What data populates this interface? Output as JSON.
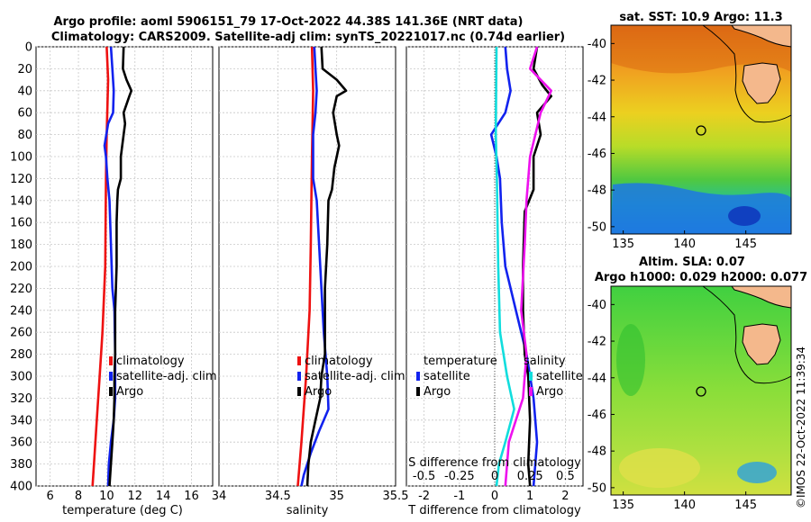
{
  "titles": {
    "line1": "Argo profile: aoml 5906151_79 17-Oct-2022 44.38S 141.36E (NRT data)",
    "line2": "Climatology: CARS2009. Satellite-adj clim: synTS_20221017.nc (0.74d earlier)"
  },
  "watermark": "©IMOS 22-Oct-2022 11:39:34",
  "colors": {
    "climatology": "#ee1111",
    "satellite": "#1122ee",
    "argo": "#000000",
    "salinity_diff": "#ee11ee",
    "temperature_diff": "#11dddd"
  },
  "chart_data": [
    {
      "type": "line",
      "panel": "temperature",
      "xlabel": "temperature (deg C)",
      "ylabel": "",
      "xlim": [
        5,
        17.5
      ],
      "ylim": [
        400,
        0
      ],
      "x_ticks": [
        "6",
        "8",
        "10",
        "12",
        "14",
        "16"
      ],
      "x_tick_values": [
        6,
        8,
        10,
        12,
        14,
        16
      ],
      "y_ticks": [
        "0",
        "20",
        "40",
        "60",
        "80",
        "100",
        "120",
        "140",
        "160",
        "180",
        "200",
        "220",
        "240",
        "260",
        "280",
        "300",
        "320",
        "340",
        "360",
        "380",
        "400"
      ],
      "y_tick_values": [
        0,
        20,
        40,
        60,
        80,
        100,
        120,
        140,
        160,
        180,
        200,
        220,
        240,
        260,
        280,
        300,
        320,
        340,
        360,
        380,
        400
      ],
      "grid": true,
      "legend": [
        "climatology",
        "satellite-adj. clim",
        "Argo"
      ],
      "series": [
        {
          "name": "climatology",
          "color": "#ee1111",
          "points": [
            [
              10.0,
              0
            ],
            [
              10.1,
              30
            ],
            [
              10.0,
              80
            ],
            [
              9.95,
              120
            ],
            [
              9.9,
              200
            ],
            [
              9.7,
              260
            ],
            [
              9.5,
              300
            ],
            [
              9.3,
              340
            ],
            [
              9.1,
              380
            ],
            [
              9.0,
              400
            ]
          ]
        },
        {
          "name": "satellite-adj. clim",
          "color": "#1122ee",
          "points": [
            [
              10.3,
              0
            ],
            [
              10.4,
              20
            ],
            [
              10.5,
              40
            ],
            [
              10.45,
              60
            ],
            [
              10.1,
              70
            ],
            [
              9.85,
              90
            ],
            [
              9.95,
              100
            ],
            [
              10.05,
              120
            ],
            [
              10.2,
              140
            ],
            [
              10.3,
              180
            ],
            [
              10.4,
              220
            ],
            [
              10.55,
              240
            ],
            [
              10.6,
              280
            ],
            [
              10.6,
              320
            ],
            [
              10.5,
              340
            ],
            [
              10.3,
              360
            ],
            [
              10.15,
              380
            ],
            [
              10.1,
              400
            ]
          ]
        },
        {
          "name": "Argo",
          "color": "#000000",
          "points": [
            [
              11.2,
              0
            ],
            [
              11.15,
              20
            ],
            [
              11.4,
              30
            ],
            [
              11.75,
              40
            ],
            [
              11.6,
              45
            ],
            [
              11.2,
              60
            ],
            [
              11.3,
              70
            ],
            [
              11.2,
              80
            ],
            [
              11.0,
              100
            ],
            [
              11.0,
              120
            ],
            [
              10.8,
              130
            ],
            [
              10.75,
              140
            ],
            [
              10.7,
              160
            ],
            [
              10.7,
              200
            ],
            [
              10.65,
              220
            ],
            [
              10.6,
              240
            ],
            [
              10.6,
              280
            ],
            [
              10.55,
              300
            ],
            [
              10.55,
              320
            ],
            [
              10.5,
              340
            ],
            [
              10.4,
              360
            ],
            [
              10.3,
              380
            ],
            [
              10.2,
              400
            ]
          ]
        }
      ]
    },
    {
      "type": "line",
      "panel": "salinity",
      "xlabel": "salinity",
      "ylabel": "",
      "xlim": [
        34,
        35.5
      ],
      "ylim": [
        400,
        0
      ],
      "x_ticks": [
        "34",
        "34.5",
        "35",
        "35.5"
      ],
      "x_tick_values": [
        34,
        34.5,
        35,
        35.5
      ],
      "grid": true,
      "legend": [
        "climatology",
        "satellite-adj. clim",
        "Argo"
      ],
      "series": [
        {
          "name": "climatology",
          "color": "#ee1111",
          "points": [
            [
              34.79,
              0
            ],
            [
              34.8,
              40
            ],
            [
              34.79,
              100
            ],
            [
              34.78,
              180
            ],
            [
              34.77,
              240
            ],
            [
              34.74,
              300
            ],
            [
              34.7,
              360
            ],
            [
              34.67,
              400
            ]
          ]
        },
        {
          "name": "satellite-adj. clim",
          "color": "#1122ee",
          "points": [
            [
              34.81,
              0
            ],
            [
              34.82,
              20
            ],
            [
              34.83,
              40
            ],
            [
              34.82,
              60
            ],
            [
              34.8,
              80
            ],
            [
              34.8,
              120
            ],
            [
              34.83,
              140
            ],
            [
              34.85,
              180
            ],
            [
              34.87,
              220
            ],
            [
              34.89,
              260
            ],
            [
              34.92,
              300
            ],
            [
              34.93,
              330
            ],
            [
              34.85,
              350
            ],
            [
              34.78,
              370
            ],
            [
              34.72,
              390
            ],
            [
              34.7,
              400
            ]
          ]
        },
        {
          "name": "Argo",
          "color": "#000000",
          "points": [
            [
              34.87,
              0
            ],
            [
              34.88,
              20
            ],
            [
              35.0,
              30
            ],
            [
              35.08,
              40
            ],
            [
              35.0,
              45
            ],
            [
              34.97,
              60
            ],
            [
              35.0,
              80
            ],
            [
              35.02,
              90
            ],
            [
              34.98,
              110
            ],
            [
              34.96,
              130
            ],
            [
              34.93,
              140
            ],
            [
              34.92,
              180
            ],
            [
              34.9,
              220
            ],
            [
              34.9,
              280
            ],
            [
              34.87,
              300
            ],
            [
              34.86,
              320
            ],
            [
              34.82,
              340
            ],
            [
              34.78,
              360
            ],
            [
              34.76,
              380
            ],
            [
              34.75,
              400
            ]
          ]
        }
      ]
    },
    {
      "type": "line",
      "panel": "difference",
      "xlabel": "T difference from climatology",
      "xlabel_top": "S difference from climatology",
      "xlim": [
        -2.5,
        2.5
      ],
      "ylim": [
        400,
        0
      ],
      "x_ticks": [
        "-2",
        "-1",
        "0",
        "1",
        "2"
      ],
      "x_tick_values": [
        -2,
        -1,
        0,
        1,
        2
      ],
      "s_ticks": [
        "-0.5",
        "-0.25",
        "0",
        "0.25",
        "0.5"
      ],
      "s_tick_values": [
        -0.5,
        -0.25,
        0,
        0.25,
        0.5
      ],
      "grid": true,
      "legend_temperature_title": "temperature",
      "legend_salinity_title": "salinity",
      "legend": [
        "satellite",
        "Argo"
      ],
      "series": [
        {
          "name": "temperature satellite",
          "color": "#1122ee",
          "points": [
            [
              0.3,
              0
            ],
            [
              0.35,
              20
            ],
            [
              0.45,
              40
            ],
            [
              0.3,
              60
            ],
            [
              -0.1,
              80
            ],
            [
              0.05,
              100
            ],
            [
              0.15,
              120
            ],
            [
              0.2,
              160
            ],
            [
              0.3,
              200
            ],
            [
              0.6,
              240
            ],
            [
              0.9,
              280
            ],
            [
              1.1,
              320
            ],
            [
              1.2,
              360
            ],
            [
              1.1,
              400
            ]
          ]
        },
        {
          "name": "temperature Argo",
          "color": "#000000",
          "points": [
            [
              1.2,
              0
            ],
            [
              1.1,
              20
            ],
            [
              1.35,
              35
            ],
            [
              1.6,
              45
            ],
            [
              1.2,
              60
            ],
            [
              1.3,
              80
            ],
            [
              1.1,
              100
            ],
            [
              1.1,
              130
            ],
            [
              0.85,
              150
            ],
            [
              0.8,
              200
            ],
            [
              0.8,
              240
            ],
            [
              0.85,
              280
            ],
            [
              0.95,
              300
            ],
            [
              1.0,
              340
            ],
            [
              0.95,
              380
            ],
            [
              1.0,
              400
            ]
          ]
        },
        {
          "name": "salinity satellite",
          "color": "#11dddd",
          "points": [
            [
              0.05,
              0
            ],
            [
              0.04,
              40
            ],
            [
              0.03,
              80
            ],
            [
              0.06,
              120
            ],
            [
              0.1,
              200
            ],
            [
              0.15,
              260
            ],
            [
              0.35,
              300
            ],
            [
              0.55,
              330
            ],
            [
              0.3,
              360
            ],
            [
              0.12,
              380
            ],
            [
              0.05,
              400
            ]
          ]
        },
        {
          "name": "salinity Argo",
          "color": "#ee11ee",
          "points": [
            [
              1.2,
              0
            ],
            [
              1.0,
              20
            ],
            [
              1.6,
              40
            ],
            [
              1.3,
              60
            ],
            [
              1.0,
              100
            ],
            [
              0.9,
              140
            ],
            [
              0.85,
              180
            ],
            [
              0.75,
              240
            ],
            [
              0.9,
              280
            ],
            [
              0.8,
              320
            ],
            [
              0.4,
              360
            ],
            [
              0.3,
              400
            ]
          ]
        }
      ]
    }
  ],
  "maps": [
    {
      "title": "sat. SST: 10.9 Argo: 11.3",
      "x_ticks": [
        "135",
        "140",
        "145"
      ],
      "y_ticks": [
        "-40",
        "-42",
        "-44",
        "-46",
        "-48",
        "-50"
      ]
    },
    {
      "title_line1": "Altim. SLA: 0.07",
      "title_line2": "Argo h1000: 0.029 h2000: 0.077",
      "x_ticks": [
        "135",
        "140",
        "145"
      ],
      "y_ticks": [
        "-40",
        "-42",
        "-44",
        "-46",
        "-48",
        "-50"
      ]
    }
  ]
}
